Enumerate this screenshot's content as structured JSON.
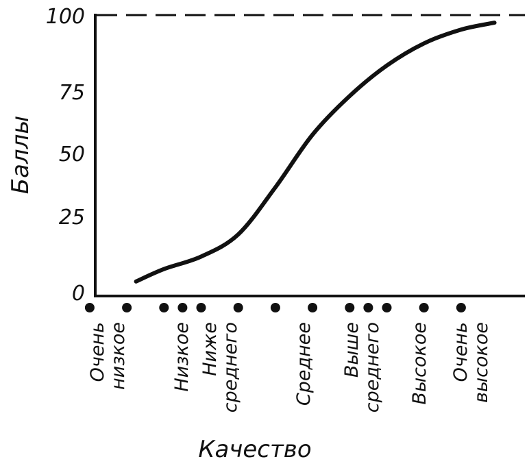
{
  "chart_data": {
    "type": "line",
    "title": "",
    "xlabel": "Качество",
    "ylabel": "Баллы",
    "ylim": [
      0,
      100
    ],
    "yticks": [
      0,
      25,
      50,
      75,
      100
    ],
    "reference_line": {
      "y": 100,
      "style": "dashed"
    },
    "grid": false,
    "categories": [
      {
        "lines": [
          "Очень",
          "низкое"
        ]
      },
      {
        "lines": [
          "Низкое"
        ]
      },
      {
        "lines": [
          "Ниже",
          "среднего"
        ]
      },
      {
        "lines": [
          "Среднее"
        ]
      },
      {
        "lines": [
          "Выше",
          "среднего"
        ]
      },
      {
        "lines": [
          "Высокое"
        ]
      },
      {
        "lines": [
          "Очень",
          "высокое"
        ]
      }
    ],
    "marker_positions": [
      -0.5,
      0.5,
      1.5,
      2.0,
      2.5,
      3.5,
      4.5,
      5.5,
      6.5,
      7.0,
      7.5,
      8.5,
      9.5
    ],
    "series": [
      {
        "color": "#111111",
        "points": [
          {
            "x": 0.75,
            "y": 4
          },
          {
            "x": 1.5,
            "y": 8.5
          },
          {
            "x": 2.5,
            "y": 13
          },
          {
            "x": 3.5,
            "y": 21
          },
          {
            "x": 4.5,
            "y": 38
          },
          {
            "x": 5.5,
            "y": 57
          },
          {
            "x": 6.5,
            "y": 71
          },
          {
            "x": 7.5,
            "y": 82
          },
          {
            "x": 8.5,
            "y": 90
          },
          {
            "x": 9.5,
            "y": 95
          },
          {
            "x": 10.4,
            "y": 97.5
          }
        ]
      }
    ],
    "colors": {
      "ink": "#111111",
      "background": "#ffffff"
    }
  }
}
